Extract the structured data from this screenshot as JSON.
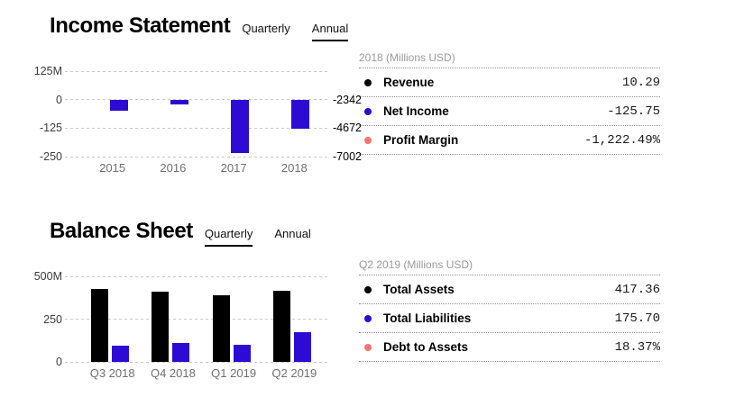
{
  "colors": {
    "accent_blue": "#2d0bd4",
    "accent_salmon": "#f9736e",
    "series_black": "#000000",
    "gridline": "#c9c9c9",
    "dotted_rule": "#8f8f8f",
    "panel_header_gray": "#9a9a9a",
    "tab_underline": "#000000"
  },
  "sections": [
    {
      "id": "income-statement",
      "title": "Income Statement",
      "tabs": [
        {
          "label": "Quarterly",
          "selected": false
        },
        {
          "label": "Annual",
          "selected": true
        }
      ],
      "panel": {
        "header": "2018 (Millions USD)",
        "rows": [
          {
            "label": "Revenue",
            "value": "10.29",
            "bullet_color": "#000000"
          },
          {
            "label": "Net Income",
            "value": "-125.75",
            "bullet_color": "#2d0bd4"
          },
          {
            "label": "Profit Margin",
            "value": "-1,222.49%",
            "bullet_color": "#f9736e"
          }
        ]
      }
    },
    {
      "id": "balance-sheet",
      "title": "Balance Sheet",
      "tabs": [
        {
          "label": "Quarterly",
          "selected": true
        },
        {
          "label": "Annual",
          "selected": false
        }
      ],
      "panel": {
        "header": "Q2 2019 (Millions USD)",
        "rows": [
          {
            "label": "Total Assets",
            "value": "417.36",
            "bullet_color": "#000000"
          },
          {
            "label": "Total Liabilities",
            "value": "175.70",
            "bullet_color": "#2d0bd4"
          },
          {
            "label": "Debt to Assets",
            "value": "18.37%",
            "bullet_color": "#f9736e"
          }
        ]
      }
    }
  ],
  "chart_data": [
    {
      "type": "bar",
      "title": "Income Statement — Annual",
      "unit": "Millions USD",
      "categories": [
        "2015",
        "2016",
        "2017",
        "2018"
      ],
      "series": [
        {
          "name": "Net Income",
          "color": "#2d0bd4",
          "values": [
            -50,
            -21,
            -236,
            -125.75
          ]
        }
      ],
      "ylim": [
        -250,
        125
      ],
      "yticks": [
        {
          "value": 125,
          "label": "125M"
        },
        {
          "value": 0,
          "label": "0"
        },
        {
          "value": -125,
          "label": "-125"
        },
        {
          "value": -250,
          "label": "-250"
        }
      ],
      "right_yticks": [
        {
          "value": 0,
          "label": "-2342"
        },
        {
          "value": -125,
          "label": "-4672"
        },
        {
          "value": -250,
          "label": "-7002"
        }
      ],
      "grid": "horizontal-dashed",
      "legend": "none"
    },
    {
      "type": "bar",
      "title": "Balance Sheet — Quarterly",
      "unit": "Millions USD",
      "categories": [
        "Q3 2018",
        "Q4 2018",
        "Q1 2019",
        "Q2 2019"
      ],
      "series": [
        {
          "name": "Total Assets",
          "color": "#000000",
          "values": [
            426,
            410,
            390,
            417.36
          ]
        },
        {
          "name": "Total Liabilities",
          "color": "#2d0bd4",
          "values": [
            95,
            108,
            102,
            175.7
          ]
        }
      ],
      "ylim": [
        0,
        500
      ],
      "yticks": [
        {
          "value": 500,
          "label": "500M"
        },
        {
          "value": 250,
          "label": "250"
        },
        {
          "value": 0,
          "label": "0"
        }
      ],
      "right_yticks": [],
      "grid": "horizontal-dashed",
      "legend": "none"
    }
  ]
}
